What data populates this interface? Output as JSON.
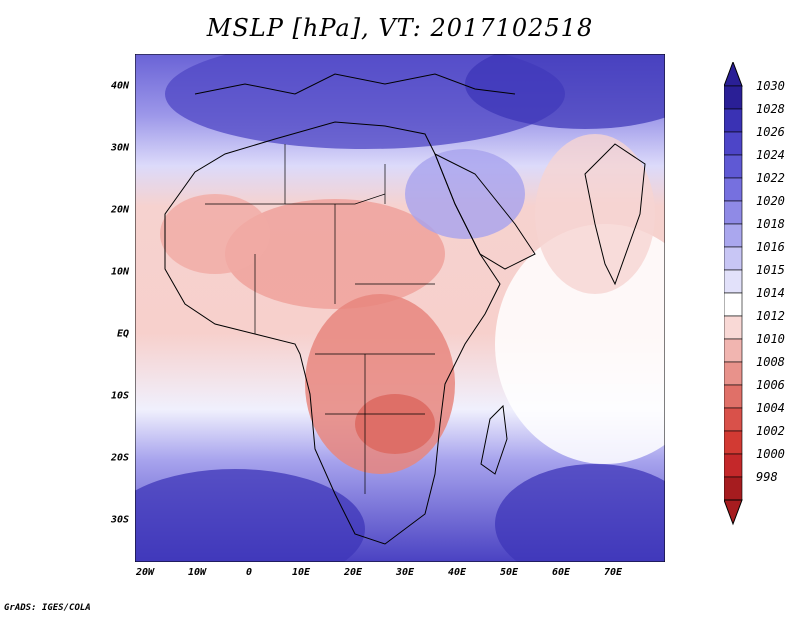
{
  "title": "MSLP [hPa], VT: 2017102518",
  "longitude_labels": [
    "20W",
    "10W",
    "0",
    "10E",
    "20E",
    "30E",
    "40E",
    "50E",
    "60E",
    "70E"
  ],
  "latitude_labels": [
    "40N",
    "30N",
    "20N",
    "10N",
    "EQ",
    "10S",
    "20S",
    "30S"
  ],
  "colorbar_labels": [
    "1030",
    "1028",
    "1026",
    "1024",
    "1022",
    "1020",
    "1018",
    "1016",
    "1015",
    "1014",
    "1012",
    "1010",
    "1008",
    "1006",
    "1004",
    "1002",
    "1000",
    "998"
  ],
  "colorbar_colors": [
    "#2a1f96",
    "#3a32b4",
    "#4d45c8",
    "#5f59d4",
    "#7670df",
    "#8f8ae6",
    "#aaa7ee",
    "#c8c6f5",
    "#e2e1fa",
    "#ffffff",
    "#f9d9d6",
    "#f1b5b0",
    "#e8928b",
    "#e07068",
    "#d9514a",
    "#d23a33",
    "#c4282a",
    "#a61c1f"
  ],
  "credit": "GrADS: IGES/COLA"
}
